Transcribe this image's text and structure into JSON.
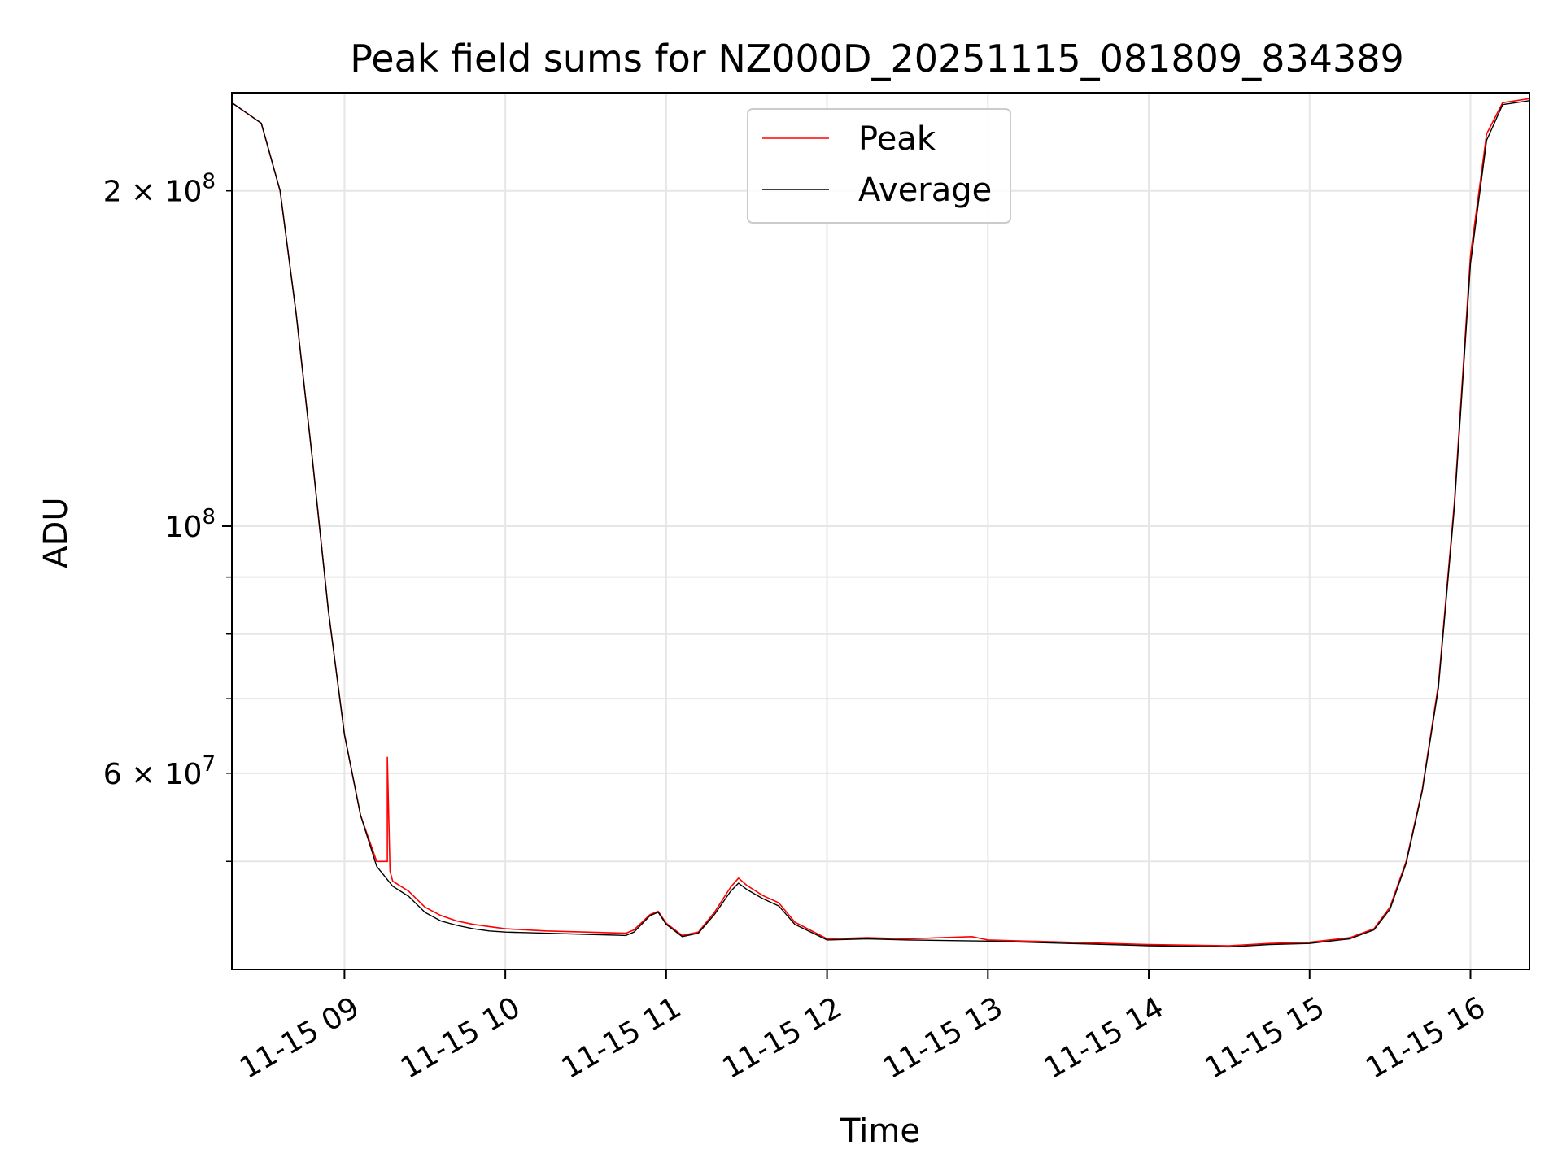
{
  "chart_data": {
    "type": "line",
    "title": "Peak field sums for NZ000D_20251115_081809_834389",
    "xlabel": "Time",
    "ylabel": "ADU",
    "x_unit": "hours",
    "xlim": [
      "2025-11-15 08:18",
      "2025-11-15 16:22"
    ],
    "ylim": [
      40000000,
      245000000
    ],
    "y_scale": "log",
    "grid": true,
    "legend_position": "top-center",
    "x_ticks": [
      {
        "value": "2025-11-15 09:00",
        "label": "11-15 09"
      },
      {
        "value": "2025-11-15 10:00",
        "label": "11-15 10"
      },
      {
        "value": "2025-11-15 11:00",
        "label": "11-15 11"
      },
      {
        "value": "2025-11-15 12:00",
        "label": "11-15 12"
      },
      {
        "value": "2025-11-15 13:00",
        "label": "11-15 13"
      },
      {
        "value": "2025-11-15 14:00",
        "label": "11-15 14"
      },
      {
        "value": "2025-11-15 15:00",
        "label": "11-15 15"
      },
      {
        "value": "2025-11-15 16:00",
        "label": "11-15 16"
      }
    ],
    "y_major_ticks": [
      {
        "value": 100000000,
        "label_base": "10",
        "label_exp": "8"
      }
    ],
    "y_minor_ticks": [
      {
        "value": 50000000,
        "label_coef": "",
        "label_exp": ""
      },
      {
        "value": 60000000,
        "label_coef": "6",
        "label_exp": "7"
      },
      {
        "value": 70000000,
        "label_coef": "",
        "label_exp": ""
      },
      {
        "value": 80000000,
        "label_coef": "",
        "label_exp": ""
      },
      {
        "value": 90000000,
        "label_coef": "",
        "label_exp": ""
      },
      {
        "value": 200000000,
        "label_coef": "2",
        "label_exp": "8"
      }
    ],
    "series": [
      {
        "name": "Peak",
        "color": "#ff0000",
        "x": [
          "2025-11-15 08:18",
          "2025-11-15 08:29",
          "2025-11-15 08:36",
          "2025-11-15 08:42",
          "2025-11-15 08:48",
          "2025-11-15 08:54",
          "2025-11-15 09:00",
          "2025-11-15 09:06",
          "2025-11-15 09:12",
          "2025-11-15 09:16",
          "2025-11-15 09:16",
          "2025-11-15 09:17",
          "2025-11-15 09:18",
          "2025-11-15 09:24",
          "2025-11-15 09:30",
          "2025-11-15 09:36",
          "2025-11-15 09:42",
          "2025-11-15 09:48",
          "2025-11-15 09:54",
          "2025-11-15 10:00",
          "2025-11-15 10:15",
          "2025-11-15 10:30",
          "2025-11-15 10:45",
          "2025-11-15 10:48",
          "2025-11-15 10:54",
          "2025-11-15 10:57",
          "2025-11-15 11:00",
          "2025-11-15 11:06",
          "2025-11-15 11:12",
          "2025-11-15 11:18",
          "2025-11-15 11:24",
          "2025-11-15 11:27",
          "2025-11-15 11:30",
          "2025-11-15 11:36",
          "2025-11-15 11:42",
          "2025-11-15 11:48",
          "2025-11-15 12:00",
          "2025-11-15 12:15",
          "2025-11-15 12:30",
          "2025-11-15 12:54",
          "2025-11-15 13:00",
          "2025-11-15 13:30",
          "2025-11-15 14:00",
          "2025-11-15 14:30",
          "2025-11-15 14:45",
          "2025-11-15 15:00",
          "2025-11-15 15:15",
          "2025-11-15 15:24",
          "2025-11-15 15:30",
          "2025-11-15 15:36",
          "2025-11-15 15:42",
          "2025-11-15 15:48",
          "2025-11-15 15:54",
          "2025-11-15 16:00",
          "2025-11-15 16:06",
          "2025-11-15 16:12",
          "2025-11-15 16:22"
        ],
        "y": [
          240000000,
          230000000,
          200000000,
          155000000,
          115000000,
          84000000,
          65000000,
          55000000,
          50000000,
          50000000,
          62000000,
          49000000,
          48000000,
          47000000,
          45500000,
          44700000,
          44200000,
          43900000,
          43700000,
          43500000,
          43300000,
          43200000,
          43100000,
          43400000,
          44800000,
          45100000,
          44000000,
          42900000,
          43200000,
          45000000,
          47400000,
          48300000,
          47600000,
          46600000,
          45900000,
          44100000,
          42600000,
          42700000,
          42600000,
          42800000,
          42500000,
          42300000,
          42100000,
          42000000,
          42200000,
          42300000,
          42700000,
          43500000,
          45500000,
          50000000,
          58000000,
          72000000,
          105000000,
          175000000,
          225000000,
          240000000,
          242000000
        ]
      },
      {
        "name": "Average",
        "color": "#000000",
        "x": [
          "2025-11-15 08:18",
          "2025-11-15 08:29",
          "2025-11-15 08:36",
          "2025-11-15 08:42",
          "2025-11-15 08:48",
          "2025-11-15 08:54",
          "2025-11-15 09:00",
          "2025-11-15 09:06",
          "2025-11-15 09:12",
          "2025-11-15 09:18",
          "2025-11-15 09:24",
          "2025-11-15 09:30",
          "2025-11-15 09:36",
          "2025-11-15 09:42",
          "2025-11-15 09:48",
          "2025-11-15 09:54",
          "2025-11-15 10:00",
          "2025-11-15 10:15",
          "2025-11-15 10:30",
          "2025-11-15 10:45",
          "2025-11-15 10:48",
          "2025-11-15 10:54",
          "2025-11-15 10:57",
          "2025-11-15 11:00",
          "2025-11-15 11:06",
          "2025-11-15 11:12",
          "2025-11-15 11:18",
          "2025-11-15 11:24",
          "2025-11-15 11:27",
          "2025-11-15 11:30",
          "2025-11-15 11:36",
          "2025-11-15 11:42",
          "2025-11-15 11:48",
          "2025-11-15 12:00",
          "2025-11-15 12:15",
          "2025-11-15 12:30",
          "2025-11-15 13:00",
          "2025-11-15 13:30",
          "2025-11-15 14:00",
          "2025-11-15 14:30",
          "2025-11-15 14:45",
          "2025-11-15 15:00",
          "2025-11-15 15:15",
          "2025-11-15 15:24",
          "2025-11-15 15:30",
          "2025-11-15 15:36",
          "2025-11-15 15:42",
          "2025-11-15 15:48",
          "2025-11-15 15:54",
          "2025-11-15 16:00",
          "2025-11-15 16:06",
          "2025-11-15 16:12",
          "2025-11-15 16:22"
        ],
        "y": [
          240000000,
          230000000,
          200000000,
          155000000,
          115000000,
          84000000,
          65000000,
          55000000,
          49500000,
          47500000,
          46500000,
          45000000,
          44200000,
          43800000,
          43500000,
          43300000,
          43200000,
          43100000,
          43000000,
          42900000,
          43200000,
          44700000,
          45000000,
          43900000,
          42800000,
          43100000,
          44800000,
          47000000,
          47800000,
          47200000,
          46300000,
          45600000,
          43900000,
          42500000,
          42600000,
          42500000,
          42400000,
          42200000,
          42000000,
          41900000,
          42100000,
          42200000,
          42600000,
          43400000,
          45300000,
          49800000,
          57800000,
          71500000,
          104000000,
          172000000,
          222000000,
          239000000,
          241000000
        ]
      }
    ]
  }
}
